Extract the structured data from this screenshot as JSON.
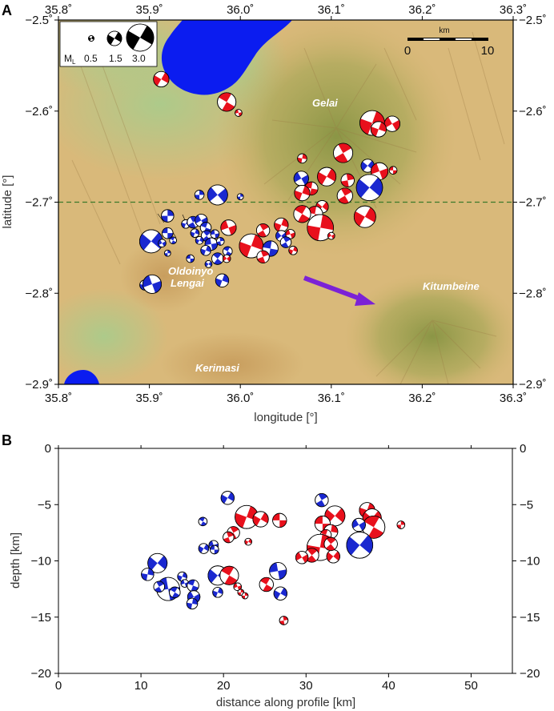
{
  "colors": {
    "red": "#e8101c",
    "blue": "#1a28d0",
    "lake": "#0b1cf0",
    "arrow": "#7b22d6",
    "profile_line": "#3d7a2a",
    "terrain": "#d8b878",
    "terrain_green": "#a7c98a"
  },
  "chart_data": [
    {
      "panel": "A",
      "type": "map",
      "xlabel": "longitude [°]",
      "ylabel": "latitude [°]",
      "xlim": [
        35.8,
        36.3
      ],
      "ylim": [
        -2.9,
        -2.5
      ],
      "x_ticks": [
        35.8,
        35.9,
        36.0,
        36.1,
        36.2,
        36.3
      ],
      "x_tick_labels": [
        "35.8˚",
        "35.9˚",
        "36.0˚",
        "36.1˚",
        "36.2˚",
        "36.3˚"
      ],
      "y_ticks": [
        -2.5,
        -2.6,
        -2.7,
        -2.8,
        -2.9
      ],
      "y_tick_labels": [
        "−2.5˚",
        "−2.6˚",
        "−2.7˚",
        "−2.8˚",
        "−2.9˚"
      ],
      "profile_latitude": -2.7,
      "place_labels": [
        "Gelai",
        "Oldoinyo",
        "Lengai",
        "Kitumbeine",
        "Kerimasi"
      ],
      "legend": {
        "title": "M",
        "subscript": "L",
        "magnitudes": [
          "0.5",
          "1.5",
          "3.0"
        ]
      },
      "scalebar": {
        "unit": "km",
        "labels": [
          "0",
          "10"
        ]
      },
      "arrow": {
        "from": [
          36.07,
          -2.785
        ],
        "to": [
          36.15,
          -2.815
        ]
      },
      "events": [
        {
          "lon": 35.913,
          "lat": -2.565,
          "m": 1.6,
          "c": "red",
          "r": 30
        },
        {
          "lon": 35.985,
          "lat": -2.59,
          "m": 2.0,
          "c": "red",
          "r": 120
        },
        {
          "lon": 35.998,
          "lat": -2.602,
          "m": 0.5,
          "c": "red",
          "r": 80
        },
        {
          "lon": 36.145,
          "lat": -2.613,
          "m": 2.8,
          "c": "red",
          "r": 20
        },
        {
          "lon": 36.167,
          "lat": -2.614,
          "m": 1.6,
          "c": "red",
          "r": 60
        },
        {
          "lon": 36.152,
          "lat": -2.62,
          "m": 1.6,
          "c": "red",
          "r": 200
        },
        {
          "lon": 36.068,
          "lat": -2.652,
          "m": 0.8,
          "c": "red",
          "r": 10
        },
        {
          "lon": 36.113,
          "lat": -2.646,
          "m": 2.1,
          "c": "red",
          "r": 150
        },
        {
          "lon": 36.14,
          "lat": -2.66,
          "m": 1.3,
          "c": "blue",
          "r": 40
        },
        {
          "lon": 36.168,
          "lat": -2.665,
          "m": 0.6,
          "c": "red",
          "r": 90
        },
        {
          "lon": 36.153,
          "lat": -2.666,
          "m": 1.8,
          "c": "red",
          "r": 250
        },
        {
          "lon": 36.067,
          "lat": -2.674,
          "m": 1.5,
          "c": "blue",
          "r": 60
        },
        {
          "lon": 36.095,
          "lat": -2.672,
          "m": 2.0,
          "c": "red",
          "r": 30
        },
        {
          "lon": 36.118,
          "lat": -2.676,
          "m": 1.3,
          "c": "red",
          "r": 170
        },
        {
          "lon": 36.142,
          "lat": -2.684,
          "m": 3.0,
          "c": "blue",
          "r": 220
        },
        {
          "lon": 36.078,
          "lat": -2.685,
          "m": 1.3,
          "c": "red",
          "r": 100
        },
        {
          "lon": 36.068,
          "lat": -2.69,
          "m": 1.6,
          "c": "red",
          "r": 20
        },
        {
          "lon": 36.115,
          "lat": -2.693,
          "m": 1.6,
          "c": "red",
          "r": 330
        },
        {
          "lon": 35.975,
          "lat": -2.692,
          "m": 2.2,
          "c": "blue",
          "r": 50
        },
        {
          "lon": 35.955,
          "lat": -2.692,
          "m": 0.8,
          "c": "blue",
          "r": 180
        },
        {
          "lon": 36.09,
          "lat": -2.705,
          "m": 1.2,
          "c": "red",
          "r": 40
        },
        {
          "lon": 36.082,
          "lat": -2.713,
          "m": 1.6,
          "c": "red",
          "r": 280
        },
        {
          "lon": 36.068,
          "lat": -2.713,
          "m": 1.8,
          "c": "red",
          "r": 120
        },
        {
          "lon": 36.137,
          "lat": -2.716,
          "m": 2.4,
          "c": "red",
          "r": 210
        },
        {
          "lon": 36.045,
          "lat": -2.725,
          "m": 1.4,
          "c": "red",
          "r": 20
        },
        {
          "lon": 36.025,
          "lat": -2.731,
          "m": 1.3,
          "c": "red",
          "r": 150
        },
        {
          "lon": 35.987,
          "lat": -2.728,
          "m": 1.6,
          "c": "red",
          "r": 70
        },
        {
          "lon": 36.088,
          "lat": -2.728,
          "m": 3.0,
          "c": "red",
          "r": 10
        },
        {
          "lon": 36.045,
          "lat": -2.737,
          "m": 1.0,
          "c": "blue",
          "r": 230
        },
        {
          "lon": 36.055,
          "lat": -2.735,
          "m": 0.8,
          "c": "red",
          "r": 70
        },
        {
          "lon": 36.05,
          "lat": -2.744,
          "m": 1.0,
          "c": "blue",
          "r": 330
        },
        {
          "lon": 36.012,
          "lat": -2.748,
          "m": 2.7,
          "c": "red",
          "r": 200
        },
        {
          "lon": 36.033,
          "lat": -2.751,
          "m": 1.6,
          "c": "blue",
          "r": 100
        },
        {
          "lon": 36.058,
          "lat": -2.753,
          "m": 0.7,
          "c": "red",
          "r": 20
        },
        {
          "lon": 36.025,
          "lat": -2.76,
          "m": 1.2,
          "c": "red",
          "r": 160
        },
        {
          "lon": 36.1,
          "lat": -2.737,
          "m": 0.5,
          "c": "red",
          "r": 60
        },
        {
          "lon": 35.902,
          "lat": -2.743,
          "m": 2.6,
          "c": "blue",
          "r": 40
        },
        {
          "lon": 35.92,
          "lat": -2.715,
          "m": 1.2,
          "c": "blue",
          "r": 180
        },
        {
          "lon": 35.92,
          "lat": -2.734,
          "m": 1.0,
          "c": "blue",
          "r": 90
        },
        {
          "lon": 35.914,
          "lat": -2.745,
          "m": 0.6,
          "c": "blue",
          "r": 240
        },
        {
          "lon": 35.926,
          "lat": -2.742,
          "m": 0.5,
          "c": "blue",
          "r": 300
        },
        {
          "lon": 35.94,
          "lat": -2.724,
          "m": 0.7,
          "c": "blue",
          "r": 20
        },
        {
          "lon": 35.948,
          "lat": -2.722,
          "m": 1.1,
          "c": "blue",
          "r": 150
        },
        {
          "lon": 35.957,
          "lat": -2.72,
          "m": 1.2,
          "c": "blue",
          "r": 60
        },
        {
          "lon": 35.962,
          "lat": -2.728,
          "m": 1.0,
          "c": "blue",
          "r": 110
        },
        {
          "lon": 35.95,
          "lat": -2.734,
          "m": 0.7,
          "c": "blue",
          "r": 200
        },
        {
          "lon": 35.963,
          "lat": -2.737,
          "m": 1.0,
          "c": "blue",
          "r": 320
        },
        {
          "lon": 35.955,
          "lat": -2.742,
          "m": 0.6,
          "c": "blue",
          "r": 30
        },
        {
          "lon": 35.972,
          "lat": -2.735,
          "m": 0.7,
          "c": "blue",
          "r": 260
        },
        {
          "lon": 35.968,
          "lat": -2.746,
          "m": 1.2,
          "c": "blue",
          "r": 80
        },
        {
          "lon": 35.978,
          "lat": -2.743,
          "m": 0.6,
          "c": "blue",
          "r": 170
        },
        {
          "lon": 35.962,
          "lat": -2.753,
          "m": 0.9,
          "c": "blue",
          "r": 20
        },
        {
          "lon": 35.986,
          "lat": -2.754,
          "m": 0.8,
          "c": "blue",
          "r": 300
        },
        {
          "lon": 35.975,
          "lat": -2.762,
          "m": 1.1,
          "c": "blue",
          "r": 130
        },
        {
          "lon": 35.985,
          "lat": -2.762,
          "m": 0.6,
          "c": "red",
          "r": 50
        },
        {
          "lon": 35.965,
          "lat": -2.768,
          "m": 0.5,
          "c": "blue",
          "r": 220
        },
        {
          "lon": 35.945,
          "lat": -2.762,
          "m": 0.6,
          "c": "blue",
          "r": 90
        },
        {
          "lon": 35.895,
          "lat": -2.791,
          "m": 0.9,
          "c": "blue",
          "r": 10
        },
        {
          "lon": 35.903,
          "lat": -2.79,
          "m": 2.0,
          "c": "blue",
          "r": 70
        },
        {
          "lon": 35.98,
          "lat": -2.786,
          "m": 1.3,
          "c": "blue",
          "r": 200
        },
        {
          "lon": 36.0,
          "lat": -2.694,
          "m": 0.4,
          "c": "blue",
          "r": 0
        },
        {
          "lon": 35.92,
          "lat": -2.756,
          "m": 0.4,
          "c": "blue",
          "r": 0
        }
      ]
    },
    {
      "panel": "B",
      "type": "scatter",
      "xlabel": "distance along profile [km]",
      "ylabel": "depth [km]",
      "xlim": [
        0,
        55
      ],
      "ylim": [
        -20,
        0
      ],
      "x_ticks": [
        0,
        10,
        20,
        30,
        40,
        50
      ],
      "x_tick_labels": [
        "0",
        "10",
        "20",
        "30",
        "40",
        "50"
      ],
      "y_ticks": [
        0,
        -5,
        -10,
        -15,
        -20
      ],
      "y_tick_labels": [
        "0",
        "−5",
        "−10",
        "−15",
        "−20"
      ],
      "events": [
        {
          "x": 20.5,
          "y": -4.4,
          "m": 1.3,
          "c": "blue",
          "r": 30
        },
        {
          "x": 17.5,
          "y": -6.5,
          "m": 0.7,
          "c": "blue",
          "r": 120
        },
        {
          "x": 22.8,
          "y": -6.1,
          "m": 2.6,
          "c": "red",
          "r": 200
        },
        {
          "x": 24.5,
          "y": -6.3,
          "m": 1.6,
          "c": "red",
          "r": 30
        },
        {
          "x": 26.8,
          "y": -6.4,
          "m": 1.4,
          "c": "red",
          "r": 90
        },
        {
          "x": 21.2,
          "y": -7.5,
          "m": 1.2,
          "c": "red",
          "r": 330
        },
        {
          "x": 20.6,
          "y": -7.9,
          "m": 1.0,
          "c": "red",
          "r": 160
        },
        {
          "x": 23.0,
          "y": -8.3,
          "m": 0.5,
          "c": "red",
          "r": 30
        },
        {
          "x": 17.6,
          "y": -8.9,
          "m": 0.9,
          "c": "blue",
          "r": 30
        },
        {
          "x": 18.8,
          "y": -8.6,
          "m": 0.8,
          "c": "blue",
          "r": 250
        },
        {
          "x": 18.9,
          "y": -9.0,
          "m": 0.7,
          "c": "blue",
          "r": 90
        },
        {
          "x": 31.9,
          "y": -4.6,
          "m": 1.3,
          "c": "blue",
          "r": 150
        },
        {
          "x": 33.5,
          "y": -6.0,
          "m": 2.2,
          "c": "red",
          "r": 40
        },
        {
          "x": 32.0,
          "y": -6.7,
          "m": 1.6,
          "c": "red",
          "r": 270
        },
        {
          "x": 33.0,
          "y": -7.4,
          "m": 1.4,
          "c": "red",
          "r": 190
        },
        {
          "x": 32.4,
          "y": -7.7,
          "m": 1.0,
          "c": "red",
          "r": 110
        },
        {
          "x": 37.4,
          "y": -5.5,
          "m": 1.6,
          "c": "red",
          "r": 20
        },
        {
          "x": 38.0,
          "y": -6.2,
          "m": 2.0,
          "c": "red",
          "r": 220
        },
        {
          "x": 38.2,
          "y": -7.0,
          "m": 2.5,
          "c": "red",
          "r": 300
        },
        {
          "x": 36.4,
          "y": -6.8,
          "m": 1.3,
          "c": "blue",
          "r": 60
        },
        {
          "x": 36.5,
          "y": -8.6,
          "m": 3.0,
          "c": "blue",
          "r": 220
        },
        {
          "x": 41.5,
          "y": -6.8,
          "m": 0.6,
          "c": "red",
          "r": 0
        },
        {
          "x": 31.7,
          "y": -8.8,
          "m": 3.0,
          "c": "red",
          "r": 10
        },
        {
          "x": 30.7,
          "y": -9.5,
          "m": 1.4,
          "c": "red",
          "r": 140
        },
        {
          "x": 33.3,
          "y": -9.6,
          "m": 1.3,
          "c": "red",
          "r": 220
        },
        {
          "x": 29.5,
          "y": -9.7,
          "m": 1.2,
          "c": "red",
          "r": 60
        },
        {
          "x": 33.0,
          "y": -8.5,
          "m": 1.3,
          "c": "red",
          "r": 320
        },
        {
          "x": 12.0,
          "y": -10.2,
          "m": 2.1,
          "c": "blue",
          "r": 40
        },
        {
          "x": 10.8,
          "y": -11.2,
          "m": 1.2,
          "c": "blue",
          "r": 190
        },
        {
          "x": 13.3,
          "y": -12.5,
          "m": 2.6,
          "c": "blue",
          "r": 80
        },
        {
          "x": 14.1,
          "y": -12.8,
          "m": 1.0,
          "c": "blue",
          "r": 300
        },
        {
          "x": 12.2,
          "y": -12.3,
          "m": 1.0,
          "c": "blue",
          "r": 150
        },
        {
          "x": 15.0,
          "y": -11.4,
          "m": 0.8,
          "c": "blue",
          "r": 20
        },
        {
          "x": 15.3,
          "y": -12.0,
          "m": 0.6,
          "c": "blue",
          "r": 250
        },
        {
          "x": 16.3,
          "y": -12.2,
          "m": 1.1,
          "c": "blue",
          "r": 110
        },
        {
          "x": 16.4,
          "y": -13.2,
          "m": 1.2,
          "c": "blue",
          "r": 60
        },
        {
          "x": 16.2,
          "y": -13.8,
          "m": 1.0,
          "c": "blue",
          "r": 190
        },
        {
          "x": 19.3,
          "y": -11.3,
          "m": 2.1,
          "c": "blue",
          "r": 40
        },
        {
          "x": 20.7,
          "y": -11.3,
          "m": 2.0,
          "c": "red",
          "r": 300
        },
        {
          "x": 19.3,
          "y": -12.8,
          "m": 0.9,
          "c": "blue",
          "r": 200
        },
        {
          "x": 21.7,
          "y": -12.3,
          "m": 0.6,
          "c": "red",
          "r": 70
        },
        {
          "x": 22.1,
          "y": -12.8,
          "m": 0.4,
          "c": "red",
          "r": 0
        },
        {
          "x": 22.6,
          "y": -13.1,
          "m": 0.4,
          "c": "red",
          "r": 0
        },
        {
          "x": 25.2,
          "y": -12.1,
          "m": 1.4,
          "c": "red",
          "r": 120
        },
        {
          "x": 26.6,
          "y": -10.9,
          "m": 1.8,
          "c": "blue",
          "r": 260
        },
        {
          "x": 26.9,
          "y": -12.9,
          "m": 1.3,
          "c": "blue",
          "r": 30
        },
        {
          "x": 27.3,
          "y": -15.3,
          "m": 0.7,
          "c": "red",
          "r": 170
        }
      ]
    }
  ]
}
